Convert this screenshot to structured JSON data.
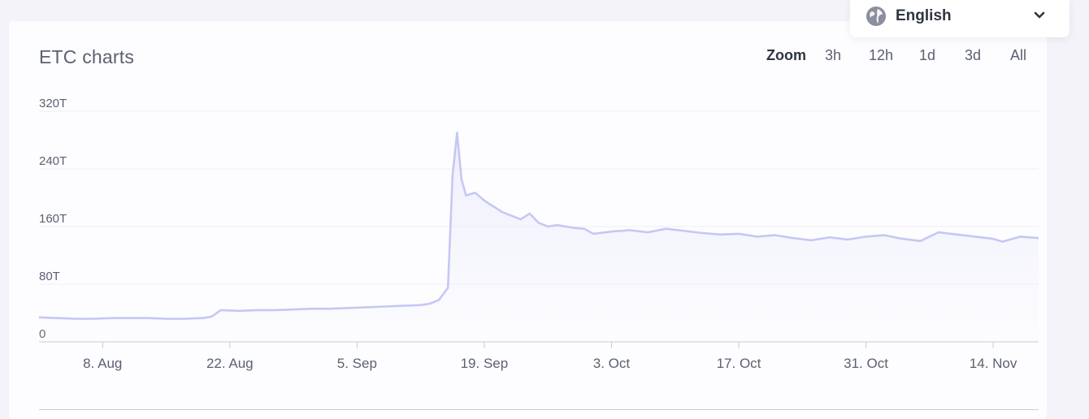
{
  "chart_title": "ETC charts",
  "zoom": {
    "label": "Zoom",
    "options": [
      "3h",
      "12h",
      "1d",
      "3d",
      "All"
    ]
  },
  "language": {
    "selected": "English",
    "icon": "globe-icon"
  },
  "colors": {
    "line": "#c5c8f3",
    "fill_top": "#eeeffb",
    "grid": "#eef0f5",
    "axis": "#c9cbd6"
  },
  "chart_data": {
    "type": "area",
    "title": "ETC charts",
    "xlabel": "",
    "ylabel": "",
    "ylim": [
      0,
      320
    ],
    "y_unit": "T",
    "y_ticks": [
      {
        "value": 0,
        "label": "0"
      },
      {
        "value": 80,
        "label": "80T"
      },
      {
        "value": 160,
        "label": "160T"
      },
      {
        "value": 240,
        "label": "240T"
      },
      {
        "value": 320,
        "label": "320T"
      }
    ],
    "x_range": [
      "2022-08-01",
      "2022-11-19"
    ],
    "x_ticks": [
      {
        "date": "2022-08-08",
        "label": "8. Aug"
      },
      {
        "date": "2022-08-22",
        "label": "22. Aug"
      },
      {
        "date": "2022-09-05",
        "label": "5. Sep"
      },
      {
        "date": "2022-09-19",
        "label": "19. Sep"
      },
      {
        "date": "2022-10-03",
        "label": "3. Oct"
      },
      {
        "date": "2022-10-17",
        "label": "17. Oct"
      },
      {
        "date": "2022-10-31",
        "label": "31. Oct"
      },
      {
        "date": "2022-11-14",
        "label": "14. Nov"
      }
    ],
    "grid": true,
    "legend": "none",
    "series": [
      {
        "x": [
          "2022-08-01",
          "2022-08-03",
          "2022-08-05",
          "2022-08-07",
          "2022-08-09",
          "2022-08-11",
          "2022-08-13",
          "2022-08-15",
          "2022-08-17",
          "2022-08-19",
          "2022-08-20",
          "2022-08-21",
          "2022-08-23",
          "2022-08-25",
          "2022-08-27",
          "2022-08-29",
          "2022-08-31",
          "2022-09-02",
          "2022-09-04",
          "2022-09-06",
          "2022-09-08",
          "2022-09-10",
          "2022-09-12",
          "2022-09-13",
          "2022-09-14",
          "2022-09-15",
          "2022-09-15T12",
          "2022-09-16",
          "2022-09-16T12",
          "2022-09-17",
          "2022-09-18",
          "2022-09-19",
          "2022-09-20",
          "2022-09-21",
          "2022-09-22",
          "2022-09-23",
          "2022-09-24",
          "2022-09-25",
          "2022-09-26",
          "2022-09-27",
          "2022-09-28",
          "2022-09-29",
          "2022-09-30",
          "2022-10-01",
          "2022-10-03",
          "2022-10-05",
          "2022-10-07",
          "2022-10-09",
          "2022-10-11",
          "2022-10-13",
          "2022-10-15",
          "2022-10-17",
          "2022-10-19",
          "2022-10-21",
          "2022-10-23",
          "2022-10-25",
          "2022-10-27",
          "2022-10-29",
          "2022-10-31",
          "2022-11-02",
          "2022-11-04",
          "2022-11-06",
          "2022-11-08",
          "2022-11-10",
          "2022-11-12",
          "2022-11-14",
          "2022-11-15",
          "2022-11-17",
          "2022-11-19"
        ],
        "y": [
          34,
          33,
          32,
          32,
          33,
          33,
          33,
          32,
          32,
          33,
          35,
          44,
          43,
          44,
          44,
          45,
          46,
          46,
          47,
          48,
          49,
          50,
          51,
          53,
          58,
          75,
          230,
          290,
          225,
          203,
          207,
          196,
          188,
          180,
          175,
          170,
          178,
          165,
          160,
          162,
          160,
          158,
          157,
          150,
          153,
          155,
          152,
          157,
          154,
          151,
          149,
          150,
          146,
          148,
          144,
          141,
          145,
          142,
          146,
          148,
          143,
          140,
          152,
          149,
          146,
          143,
          139,
          146,
          144
        ]
      }
    ]
  }
}
